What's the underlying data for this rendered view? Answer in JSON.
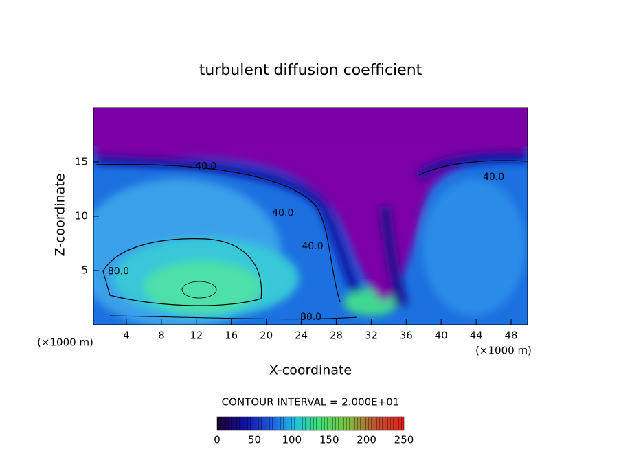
{
  "chart_data": {
    "type": "contour",
    "title": "turbulent diffusion coefficient",
    "x_label": "X-coordinate",
    "y_label": "Z-coordinate",
    "x_unit": "(×1000 m)",
    "y_unit": "(×1000 m)",
    "xlim": [
      0,
      50
    ],
    "ylim": [
      0,
      20
    ],
    "xticks": [
      4,
      8,
      12,
      16,
      20,
      24,
      28,
      32,
      36,
      40,
      44,
      48
    ],
    "yticks": [
      5,
      10,
      15
    ],
    "contour_interval_text": "CONTOUR INTERVAL = 2.000E+01",
    "contour_labels": [
      {
        "text": "40.0",
        "x": 13.1,
        "y": 14.6
      },
      {
        "text": "40.0",
        "x": 21.9,
        "y": 10.3
      },
      {
        "text": "40.0",
        "x": 25.3,
        "y": 7.2
      },
      {
        "text": "40.0",
        "x": 46,
        "y": 13.6
      },
      {
        "text": "80.0",
        "x": 3.1,
        "y": 4.9
      },
      {
        "text": "80.0",
        "x": 25.1,
        "y": 0.7
      }
    ],
    "colorbar": {
      "lim": [
        0,
        250
      ],
      "ticks": [
        0,
        50,
        100,
        150,
        200,
        250
      ]
    }
  }
}
